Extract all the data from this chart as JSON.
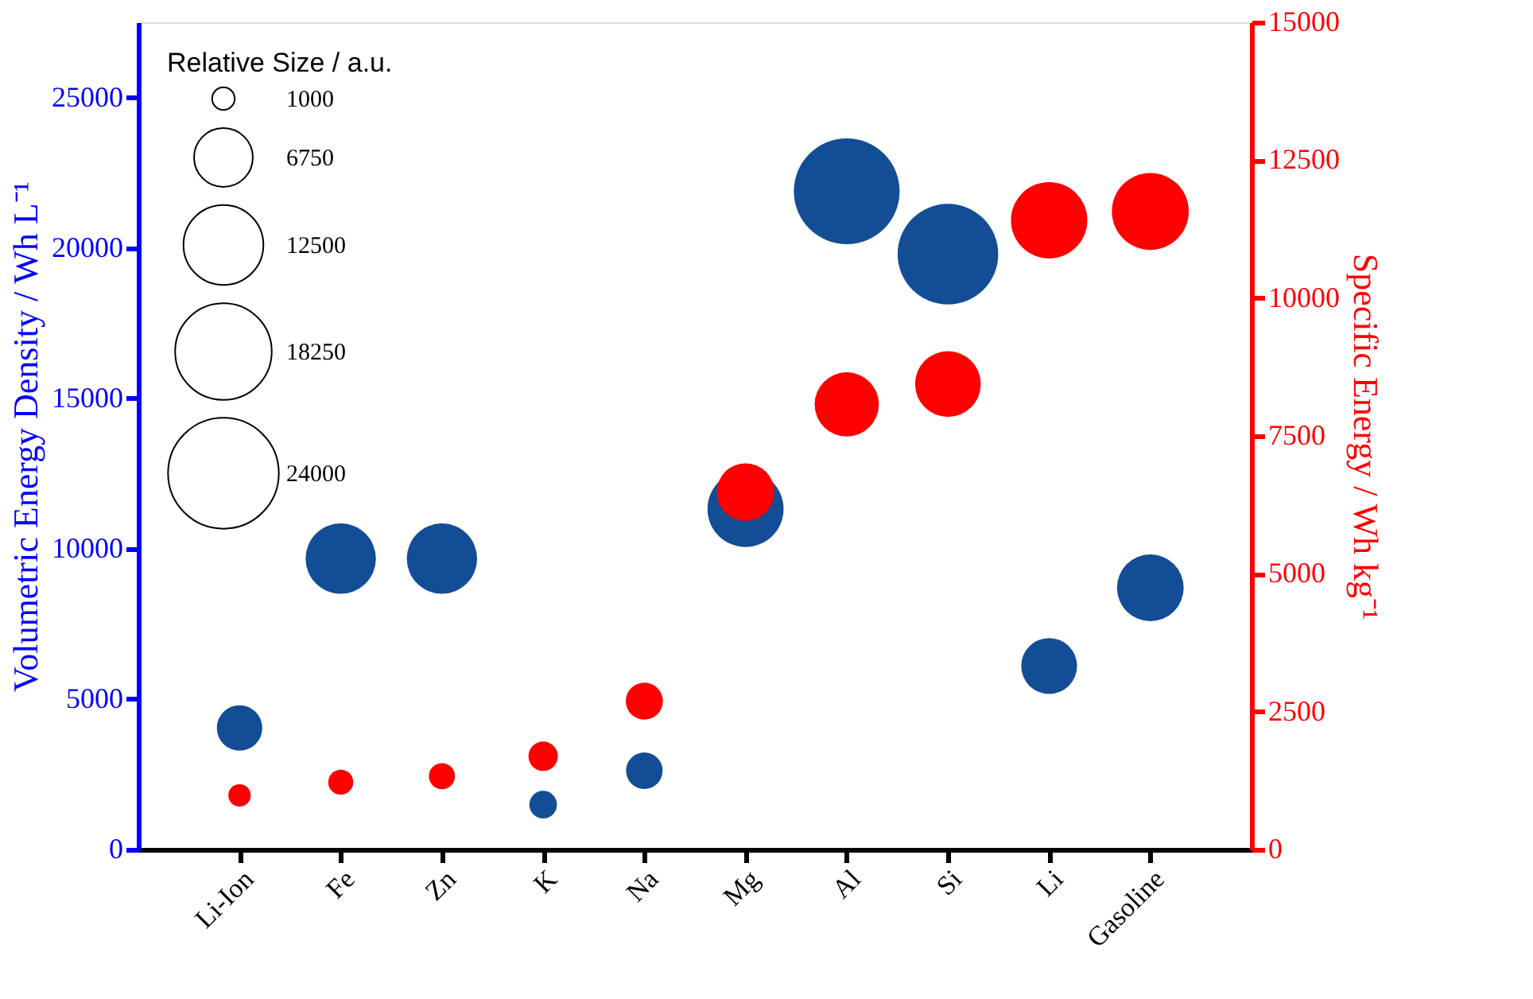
{
  "chart_data": {
    "type": "bubble",
    "categories": [
      "Li-Ion",
      "Fe",
      "Zn",
      "K",
      "Na",
      "Mg",
      "Al",
      "Si",
      "Li",
      "Gasoline"
    ],
    "series": [
      {
        "color": "#134d96",
        "values": [
          4040,
          9670,
          9670,
          1490,
          2620,
          11320,
          21880,
          19790,
          6100,
          8700
        ],
        "sizes": [
          4040,
          9670,
          9670,
          1490,
          2620,
          11320,
          21880,
          19790,
          6100,
          8700
        ]
      },
      {
        "color": "#ff0000",
        "axis": "y2",
        "values": [
          980,
          1220,
          1330,
          1690,
          2690,
          6480,
          8070,
          8440,
          11410,
          11570
        ],
        "sizes": [
          980,
          1220,
          1330,
          1690,
          2690,
          6480,
          8070,
          8440,
          11410,
          11570
        ]
      }
    ],
    "ylabel": "Volumetric Energy Density / Wh L⁻¹",
    "y2label": "Specific Energy / Wh kg⁻¹",
    "ylim": [
      0,
      27500
    ],
    "yticks": [
      0,
      5000,
      10000,
      15000,
      20000,
      25000
    ],
    "y2lim": [
      0,
      15000
    ],
    "y2ticks": [
      0,
      2500,
      5000,
      7500,
      10000,
      12500,
      15000
    ],
    "legend_title": "Relative Size / a.u.",
    "size_legend": [
      1000,
      6750,
      12500,
      18250,
      24000
    ],
    "grid": false
  }
}
